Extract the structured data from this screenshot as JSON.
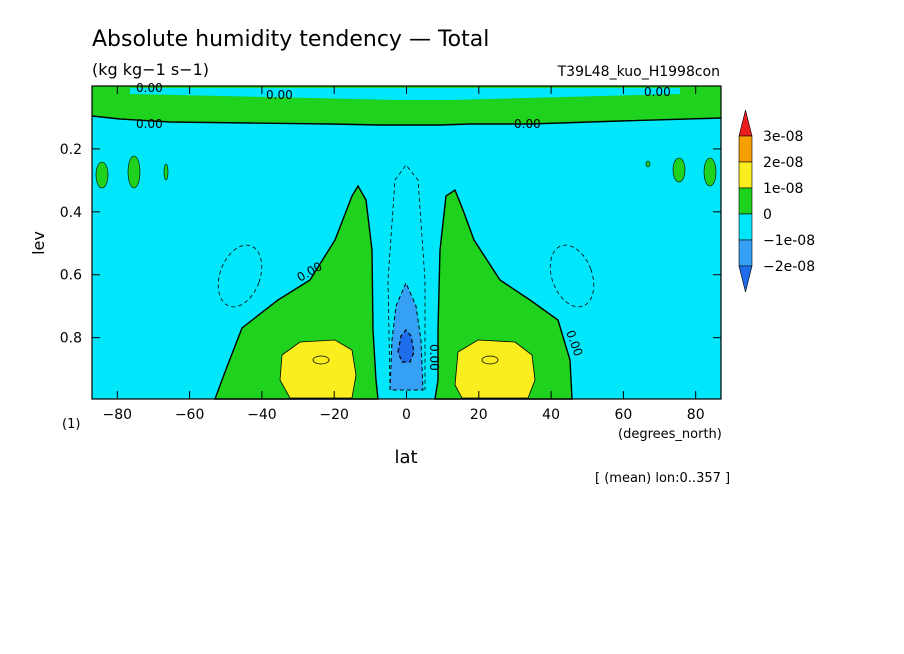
{
  "chart_data": {
    "type": "heatmap",
    "title": "Absolute humidity tendency — Total",
    "units": "(kg kg−1 s−1)",
    "experiment": "T39L48_kuo_H1998con",
    "xlabel": "lat",
    "ylabel": "lev",
    "x_units": "(degrees_north)",
    "y_units": "(1)",
    "footer": "[ (mean) lon:0..357 ]",
    "xlim": [
      -87,
      87
    ],
    "ylim": [
      0.0,
      0.995
    ],
    "y_inverted": true,
    "x_ticks": [
      -80,
      -60,
      -40,
      -20,
      0,
      20,
      40,
      60,
      80
    ],
    "y_ticks": [
      0.2,
      0.4,
      0.6,
      0.8
    ],
    "contour_label": "0.00",
    "colorbar": {
      "labels": [
        "3e-08",
        "2e-08",
        "1e-08",
        "0",
        "−1e-08",
        "−2e-08"
      ],
      "levels": [
        -3e-08,
        -2e-08,
        -1e-08,
        0,
        1e-08,
        2e-08,
        3e-08
      ],
      "colors": [
        "#1e6eeb",
        "#36a0f5",
        "#00e6fa",
        "#1ed21e",
        "#faee1e",
        "#f5a000",
        "#eb1e1e"
      ]
    },
    "regions": [
      {
        "name": "near-zero negative background",
        "value_range": [
          -1e-08,
          0
        ]
      },
      {
        "name": "equatorial column minimum",
        "lat": 0,
        "lev": 0.83,
        "value_range": [
          -3e-08,
          -2e-08
        ]
      },
      {
        "name": "subtropical maximum south",
        "lat": -24,
        "lev": 0.88,
        "value_range": [
          1e-08,
          2e-08
        ]
      },
      {
        "name": "subtropical maximum north",
        "lat": 24,
        "lev": 0.88,
        "value_range": [
          1e-08,
          2e-08
        ]
      },
      {
        "name": "upper positive layer",
        "lev": 0.05,
        "value_range": [
          0,
          1e-08
        ]
      }
    ]
  }
}
